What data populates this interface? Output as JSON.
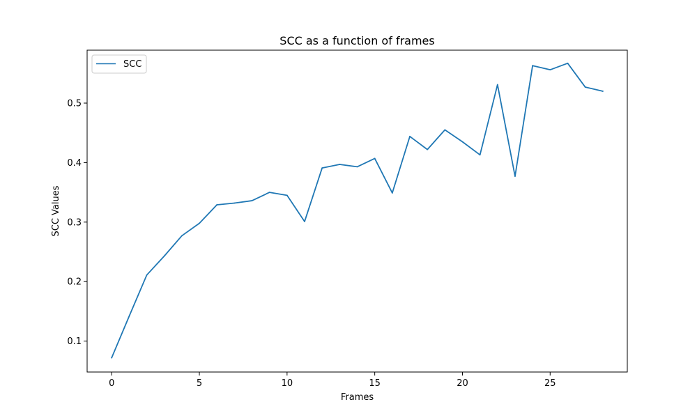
{
  "chart_data": {
    "type": "line",
    "title": "SCC as a function of frames",
    "xlabel": "Frames",
    "ylabel": "SCC Values",
    "xlim": [
      -1.4,
      29.4
    ],
    "ylim": [
      0.048,
      0.589
    ],
    "xticks": [
      0,
      5,
      10,
      15,
      20,
      25
    ],
    "yticks": [
      0.1,
      0.2,
      0.3,
      0.4,
      0.5
    ],
    "xtick_labels": [
      "0",
      "5",
      "10",
      "15",
      "20",
      "25"
    ],
    "ytick_labels": [
      "0.1",
      "0.2",
      "0.3",
      "0.4",
      "0.5"
    ],
    "grid": false,
    "legend_position": "top-left",
    "series": [
      {
        "name": "SCC",
        "color": "#1f77b4",
        "x": [
          0,
          1,
          2,
          3,
          4,
          5,
          6,
          7,
          8,
          9,
          10,
          11,
          12,
          13,
          14,
          15,
          16,
          17,
          18,
          19,
          20,
          21,
          22,
          23,
          24,
          25,
          26,
          27,
          28
        ],
        "values": [
          0.072,
          0.142,
          0.211,
          0.243,
          0.277,
          0.298,
          0.329,
          0.332,
          0.336,
          0.35,
          0.345,
          0.301,
          0.391,
          0.397,
          0.393,
          0.407,
          0.349,
          0.444,
          0.422,
          0.455,
          0.435,
          0.413,
          0.531,
          0.377,
          0.563,
          0.556,
          0.567,
          0.527,
          0.52
        ]
      }
    ]
  }
}
